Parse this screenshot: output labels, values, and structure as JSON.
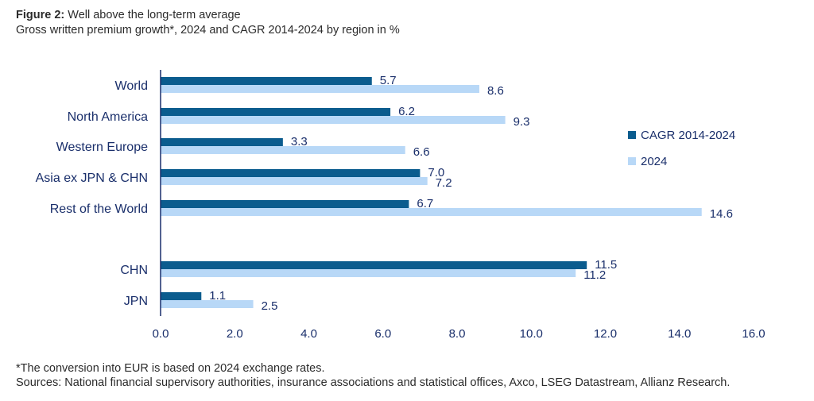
{
  "header": {
    "figure_label": "Figure 2:",
    "figure_title": "Well above the long-term average",
    "subtitle": "Gross written premium growth*, 2024 and CAGR 2014-2024 by region in %"
  },
  "footer": {
    "note": "*The conversion into EUR is based on 2024 exchange rates.",
    "sources": "Sources: National financial supervisory authorities, insurance associations and statistical offices, Axco, LSEG Datastream, Allianz Research."
  },
  "colors": {
    "cagr": "#0b5c8e",
    "y2024": "#b8d8f7",
    "axis": "#1a2f6b"
  },
  "chart_data": {
    "type": "bar",
    "orientation": "horizontal",
    "title": "Well above the long-term average",
    "categories": [
      "World",
      "North America",
      "Western Europe",
      "Asia ex JPN & CHN",
      "Rest of the World",
      "CHN",
      "JPN"
    ],
    "series": [
      {
        "name": "CAGR 2014-2024",
        "values": [
          5.7,
          6.2,
          3.3,
          7.0,
          6.7,
          11.5,
          1.1
        ],
        "labels": [
          "5.7",
          "6.2",
          "3.3",
          "7.0",
          "6.7",
          "11.5",
          "1.1"
        ]
      },
      {
        "name": "2024",
        "values": [
          8.6,
          9.3,
          6.6,
          7.2,
          14.6,
          11.2,
          2.5
        ],
        "labels": [
          "8.6",
          "9.3",
          "6.6",
          "7.2",
          "14.6",
          "11.2",
          "2.5"
        ]
      }
    ],
    "xlim": [
      0,
      16
    ],
    "xticks": [
      "0.0",
      "2.0",
      "4.0",
      "6.0",
      "8.0",
      "10.0",
      "12.0",
      "14.0",
      "16.0"
    ],
    "legend_position": "right"
  }
}
